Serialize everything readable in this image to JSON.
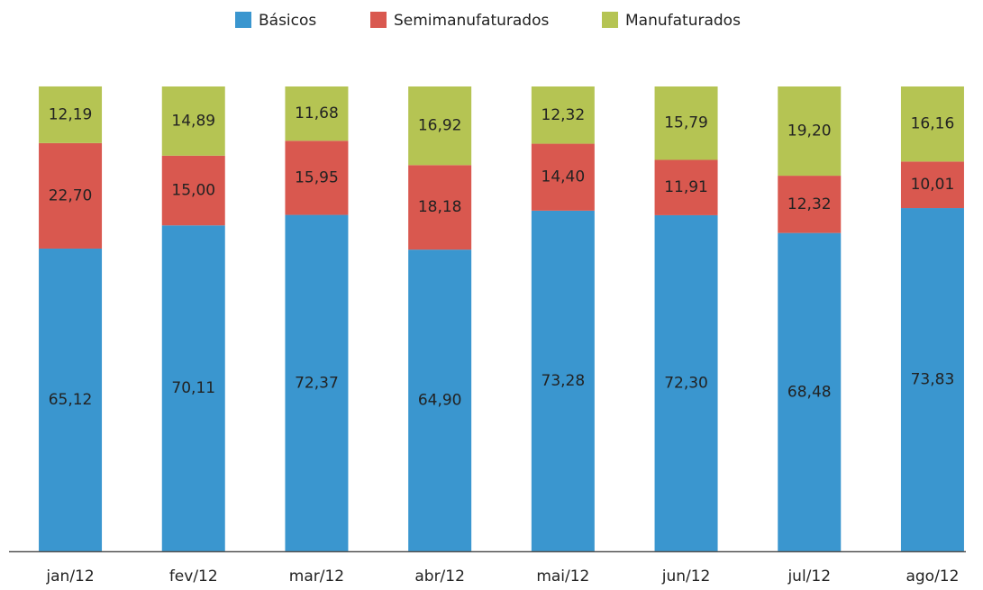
{
  "chart_data": {
    "type": "stacked_bar",
    "categories": [
      "jan/12",
      "fev/12",
      "mar/12",
      "abr/12",
      "mai/12",
      "jun/12",
      "jul/12",
      "ago/12"
    ],
    "series": [
      {
        "name": "Básicos",
        "color": "#3a96cf",
        "values": [
          65.12,
          70.11,
          72.37,
          64.9,
          73.28,
          72.3,
          68.48,
          73.83
        ],
        "value_labels": [
          "65,12",
          "70,11",
          "72,37",
          "64,90",
          "73,28",
          "72,30",
          "68,48",
          "73,83"
        ]
      },
      {
        "name": "Semimanufaturados",
        "color": "#d9584f",
        "values": [
          22.7,
          15.0,
          15.95,
          18.18,
          14.4,
          11.91,
          12.32,
          10.01
        ],
        "value_labels": [
          "22,70",
          "15,00",
          "15,95",
          "18,18",
          "14,40",
          "11,91",
          "12,32",
          "10,01"
        ]
      },
      {
        "name": "Manufaturados",
        "color": "#b5c453",
        "values": [
          12.19,
          14.89,
          11.68,
          16.92,
          12.32,
          15.79,
          19.2,
          16.16
        ],
        "value_labels": [
          "12,19",
          "14,89",
          "11,68",
          "16,92",
          "12,32",
          "15,79",
          "19,20",
          "16,16"
        ]
      }
    ],
    "ylim": [
      0,
      100
    ],
    "legend": "top"
  }
}
